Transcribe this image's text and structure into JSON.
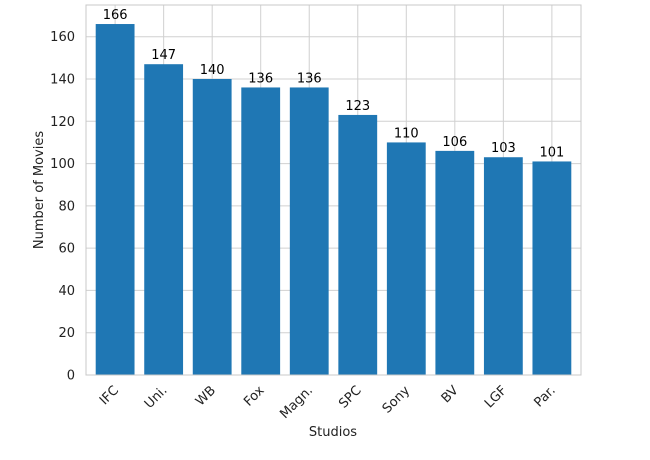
{
  "chart_data": {
    "type": "bar",
    "title": "",
    "xlabel": "Studios",
    "ylabel": "Number of Movies",
    "categories": [
      "IFC",
      "Uni.",
      "WB",
      "Fox",
      "Magn.",
      "SPC",
      "Sony",
      "BV",
      "LGF",
      "Par."
    ],
    "values": [
      166,
      147,
      140,
      136,
      136,
      123,
      110,
      106,
      103,
      101
    ],
    "ylim": [
      0,
      175
    ],
    "yticks": [
      0,
      20,
      40,
      60,
      80,
      100,
      120,
      140,
      160
    ],
    "grid": true,
    "legend": "none",
    "colors": {
      "bar": "#1f77b4",
      "grid": "#d0d0d0"
    }
  }
}
